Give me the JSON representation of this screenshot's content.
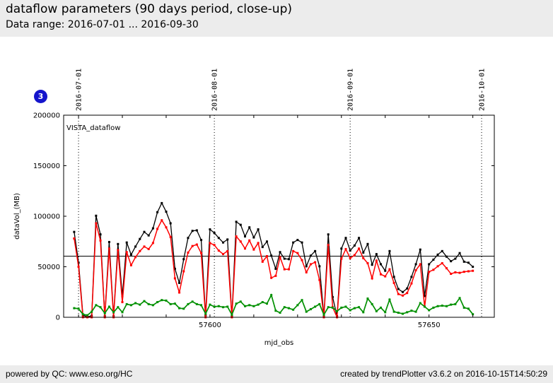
{
  "header": {
    "title": "dataflow parameters (90 days period, close-up)",
    "subtitle": "Data range: 2016-07-01 ... 2016-09-30"
  },
  "badge": {
    "label": "3"
  },
  "footer": {
    "left": "powered by QC: www.eso.org/HC",
    "right": "created by trendPlotter v3.6.2 on 2016-10-15T14:50:29"
  },
  "chart_data": {
    "type": "line",
    "inner_label": "VISTA_dataflow",
    "xlabel": "mjd_obs",
    "ylabel": "dataVol_(MB)",
    "xlim": [
      57566.6,
      57664.9
    ],
    "ylim": [
      0,
      200000
    ],
    "yticks": [
      0,
      50000,
      100000,
      150000,
      200000
    ],
    "ytick_labels": [
      "0",
      "50000",
      "100000",
      "150000",
      "200000"
    ],
    "xticks_labeled": [
      {
        "x": 57600,
        "label": "57600"
      },
      {
        "x": 57650,
        "label": "57650"
      }
    ],
    "xticks_minor": [
      57570,
      57580,
      57590,
      57600,
      57610,
      57620,
      57630,
      57640,
      57650,
      57660
    ],
    "vlines": [
      {
        "x": 57570,
        "label": "2016-07-01"
      },
      {
        "x": 57601,
        "label": "2016-08-01"
      },
      {
        "x": 57632,
        "label": "2016-09-01"
      },
      {
        "x": 57662,
        "label": "2016-10-01"
      }
    ],
    "hline": 60500,
    "grid": false,
    "legend": "none",
    "x_start": 57569,
    "x_step": 1,
    "x": [
      57569,
      57570,
      57571,
      57572,
      57573,
      57574,
      57575,
      57576,
      57577,
      57578,
      57579,
      57580,
      57581,
      57582,
      57583,
      57584,
      57585,
      57586,
      57587,
      57588,
      57589,
      57590,
      57591,
      57592,
      57593,
      57594,
      57595,
      57596,
      57597,
      57598,
      57599,
      57600,
      57601,
      57602,
      57603,
      57604,
      57605,
      57606,
      57607,
      57608,
      57609,
      57610,
      57611,
      57612,
      57613,
      57614,
      57615,
      57616,
      57617,
      57618,
      57619,
      57620,
      57621,
      57622,
      57623,
      57624,
      57625,
      57626,
      57627,
      57628,
      57629,
      57630,
      57631,
      57632,
      57633,
      57634,
      57635,
      57636,
      57637,
      57638,
      57639,
      57640,
      57641,
      57642,
      57643,
      57644,
      57645,
      57646,
      57647,
      57648,
      57649,
      57650,
      57651,
      57652,
      57653,
      57654,
      57655,
      57656,
      57657,
      57658,
      57659,
      57660
    ],
    "series": [
      {
        "name": "black",
        "color": "#000000",
        "line_width": 1.3,
        "values": [
          84500,
          54000,
          2000,
          500,
          1500,
          100500,
          82000,
          1000,
          74500,
          1000,
          72500,
          21000,
          74000,
          62000,
          70000,
          77500,
          84500,
          81000,
          88000,
          104000,
          113000,
          104500,
          93000,
          48000,
          34000,
          57500,
          78500,
          85500,
          86000,
          76500,
          2000,
          87000,
          83500,
          78500,
          74000,
          77000,
          1000,
          94500,
          91500,
          80000,
          89000,
          79000,
          87000,
          69500,
          75000,
          61000,
          48000,
          64500,
          58000,
          57500,
          74000,
          76500,
          74000,
          50500,
          61000,
          65500,
          50500,
          1000,
          82000,
          20000,
          1000,
          68000,
          78500,
          66000,
          71000,
          78500,
          64000,
          72500,
          52000,
          62500,
          52500,
          46000,
          65500,
          40000,
          28000,
          25000,
          28500,
          40000,
          52500,
          67000,
          21000,
          52500,
          57000,
          62000,
          65500,
          60000,
          55500,
          58000,
          63500,
          55000,
          54000,
          50000
        ]
      },
      {
        "name": "red",
        "color": "#ff0000",
        "line_width": 1.5,
        "values": [
          78000,
          50000,
          0,
          0,
          0,
          93000,
          76000,
          0,
          68000,
          0,
          66500,
          15000,
          64500,
          51500,
          59500,
          65500,
          70000,
          67500,
          73500,
          87500,
          96000,
          89000,
          79500,
          38500,
          24500,
          45500,
          64000,
          70500,
          72000,
          63500,
          0,
          73500,
          71500,
          66000,
          62500,
          65500,
          0,
          80000,
          75000,
          68000,
          76000,
          67000,
          73500,
          55000,
          60500,
          39000,
          41000,
          59500,
          47500,
          47500,
          65500,
          63500,
          56500,
          44500,
          52500,
          54500,
          37000,
          0,
          71500,
          10000,
          0,
          58000,
          67500,
          58500,
          61500,
          68000,
          58500,
          53500,
          38500,
          56000,
          42500,
          40500,
          47500,
          34000,
          23000,
          21500,
          24000,
          33500,
          46500,
          52500,
          10500,
          45000,
          47000,
          50500,
          53500,
          48500,
          43000,
          44500,
          44000,
          45000,
          45500,
          46000
        ]
      },
      {
        "name": "green",
        "color": "#009000",
        "line_width": 1.7,
        "values": [
          9000,
          8500,
          3000,
          2000,
          5500,
          12000,
          10000,
          4000,
          10500,
          5000,
          10000,
          5000,
          13000,
          12000,
          14000,
          12500,
          16000,
          13000,
          12000,
          15000,
          17000,
          16500,
          13000,
          13500,
          9000,
          8500,
          13000,
          15500,
          13000,
          12000,
          3500,
          12500,
          10500,
          11000,
          10000,
          10500,
          2500,
          13500,
          15500,
          11000,
          12000,
          11000,
          12500,
          15000,
          13500,
          22000,
          6500,
          4500,
          10000,
          9000,
          7500,
          12000,
          17000,
          5500,
          8000,
          10500,
          13000,
          2500,
          10000,
          9500,
          6000,
          9500,
          10500,
          7000,
          9000,
          10000,
          5000,
          18500,
          13000,
          6000,
          9500,
          5000,
          17500,
          5500,
          4500,
          3500,
          5000,
          6500,
          5500,
          14000,
          10500,
          7000,
          9500,
          11000,
          11500,
          11000,
          12500,
          13000,
          19000,
          9500,
          8500,
          3000
        ]
      }
    ]
  }
}
